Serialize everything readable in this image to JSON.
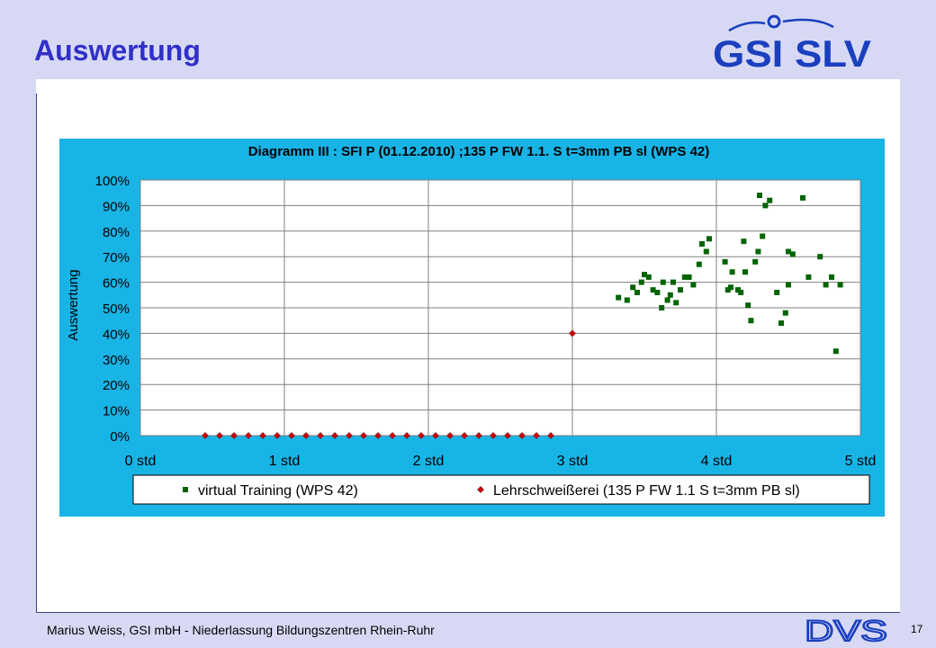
{
  "slide": {
    "title": "Auswertung",
    "footer": "Marius Weiss, GSI mbH - Niederlassung Bildungszentren Rhein-Ruhr",
    "page_number": "17",
    "logo_top": "GSI SLV",
    "logo_bottom": "DVS"
  },
  "colors": {
    "title": "#3030c8",
    "chart_bg": "#18b4e6",
    "series1": "#006400",
    "series2": "#cc0000",
    "logo": "#1a3fbf"
  },
  "chart_data": {
    "type": "scatter",
    "title": "Diagramm III : SFI P (01.12.2010) ;135 P FW 1.1. S t=3mm PB sl (WPS 42)",
    "xlabel": "",
    "ylabel": "Auswertung",
    "xlim": [
      0,
      5
    ],
    "ylim": [
      0,
      100
    ],
    "x_ticks": [
      "0 std",
      "1 std",
      "2 std",
      "3 std",
      "4 std",
      "5 std"
    ],
    "y_ticks": [
      "0%",
      "10%",
      "20%",
      "30%",
      "40%",
      "50%",
      "60%",
      "70%",
      "80%",
      "90%",
      "100%"
    ],
    "grid": true,
    "legend_position": "bottom",
    "series": [
      {
        "name": "virtual Training (WPS 42)",
        "marker": "square",
        "points": [
          [
            3.32,
            54
          ],
          [
            3.38,
            53
          ],
          [
            3.42,
            58
          ],
          [
            3.45,
            56
          ],
          [
            3.48,
            60
          ],
          [
            3.5,
            63
          ],
          [
            3.53,
            62
          ],
          [
            3.56,
            57
          ],
          [
            3.59,
            56
          ],
          [
            3.62,
            50
          ],
          [
            3.63,
            60
          ],
          [
            3.66,
            53
          ],
          [
            3.68,
            55
          ],
          [
            3.7,
            60
          ],
          [
            3.72,
            52
          ],
          [
            3.75,
            57
          ],
          [
            3.78,
            62
          ],
          [
            3.81,
            62
          ],
          [
            3.84,
            59
          ],
          [
            3.88,
            67
          ],
          [
            3.9,
            75
          ],
          [
            3.93,
            72
          ],
          [
            3.95,
            77
          ],
          [
            4.06,
            68
          ],
          [
            4.08,
            57
          ],
          [
            4.1,
            58
          ],
          [
            4.11,
            64
          ],
          [
            4.15,
            57
          ],
          [
            4.17,
            56
          ],
          [
            4.19,
            76
          ],
          [
            4.2,
            64
          ],
          [
            4.22,
            51
          ],
          [
            4.24,
            45
          ],
          [
            4.27,
            68
          ],
          [
            4.29,
            72
          ],
          [
            4.3,
            94
          ],
          [
            4.32,
            78
          ],
          [
            4.34,
            90
          ],
          [
            4.37,
            92
          ],
          [
            4.42,
            56
          ],
          [
            4.45,
            44
          ],
          [
            4.48,
            48
          ],
          [
            4.5,
            72
          ],
          [
            4.5,
            59
          ],
          [
            4.53,
            71
          ],
          [
            4.6,
            93
          ],
          [
            4.64,
            62
          ],
          [
            4.72,
            70
          ],
          [
            4.76,
            59
          ],
          [
            4.8,
            62
          ],
          [
            4.83,
            33
          ],
          [
            4.86,
            59
          ]
        ]
      },
      {
        "name": "Lehrschweißerei (135 P FW 1.1 S t=3mm PB sl)",
        "marker": "diamond",
        "points": [
          [
            0.45,
            0
          ],
          [
            0.55,
            0
          ],
          [
            0.65,
            0
          ],
          [
            0.75,
            0
          ],
          [
            0.85,
            0
          ],
          [
            0.95,
            0
          ],
          [
            1.05,
            0
          ],
          [
            1.15,
            0
          ],
          [
            1.25,
            0
          ],
          [
            1.35,
            0
          ],
          [
            1.45,
            0
          ],
          [
            1.55,
            0
          ],
          [
            1.65,
            0
          ],
          [
            1.75,
            0
          ],
          [
            1.85,
            0
          ],
          [
            1.95,
            0
          ],
          [
            2.05,
            0
          ],
          [
            2.15,
            0
          ],
          [
            2.25,
            0
          ],
          [
            2.35,
            0
          ],
          [
            2.45,
            0
          ],
          [
            2.55,
            0
          ],
          [
            2.65,
            0
          ],
          [
            2.75,
            0
          ],
          [
            2.85,
            0
          ],
          [
            3.0,
            40
          ]
        ]
      }
    ]
  }
}
